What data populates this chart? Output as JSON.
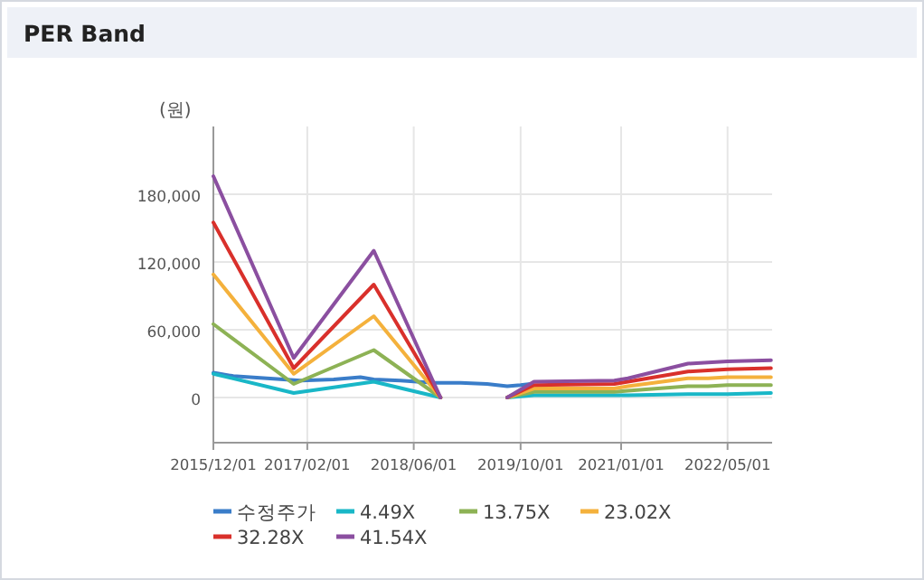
{
  "chart_data": {
    "type": "line",
    "title": "PER Band",
    "ylabel": "(원)",
    "x": [
      "2015-12-01",
      "2016-12-01",
      "2017-12-01",
      "2018-10-01",
      "2019-03-01",
      "2019-08-01",
      "2019-12-01",
      "2020-12-01",
      "2021-02-01",
      "2021-11-01",
      "2022-02-01",
      "2022-05-01",
      "2022-11-15"
    ],
    "series": [
      {
        "name": "수정주가",
        "color": "#3a7dc9",
        "x": [
          "2015-12-01",
          "2016-03-01",
          "2016-08-01",
          "2017-01-01",
          "2017-06-01",
          "2017-10-01",
          "2017-12-01",
          "2018-04-01",
          "2018-09-01",
          "2019-01-01",
          "2019-05-01",
          "2019-08-01",
          "2019-10-01",
          "2019-11-15"
        ],
        "values": [
          22000,
          19000,
          17000,
          15000,
          16000,
          18000,
          16000,
          15000,
          13000,
          13000,
          12000,
          10000,
          11000,
          12000
        ]
      },
      {
        "name": "4.49X",
        "color": "#19b7c7",
        "values": [
          21000,
          4000,
          14000,
          0,
          null,
          0,
          2000,
          2000,
          2000,
          3000,
          3000,
          3000,
          4000
        ]
      },
      {
        "name": "13.75X",
        "color": "#8db255",
        "values": [
          65000,
          12000,
          42000,
          0,
          null,
          0,
          5000,
          5000,
          6000,
          10000,
          10000,
          11000,
          11000
        ]
      },
      {
        "name": "23.02X",
        "color": "#f4b13c",
        "values": [
          109000,
          21000,
          72000,
          0,
          null,
          0,
          8000,
          8000,
          10000,
          17000,
          17000,
          18000,
          18000
        ]
      },
      {
        "name": "32.28X",
        "color": "#d9302b",
        "values": [
          155000,
          26000,
          100000,
          0,
          null,
          0,
          11000,
          12000,
          14000,
          23000,
          24000,
          25000,
          26000
        ]
      },
      {
        "name": "41.54X",
        "color": "#8b4fa0",
        "values": [
          196000,
          35000,
          130000,
          0,
          null,
          0,
          14000,
          15000,
          17000,
          30000,
          31000,
          32000,
          33000
        ]
      }
    ],
    "xlim": [
      "2015-12-01",
      "2022-11-20"
    ],
    "xticks": [
      {
        "value": "2015-12-01",
        "label": "2015/12/01"
      },
      {
        "value": "2017-02-01",
        "label": "2017/02/01"
      },
      {
        "value": "2018-06-01",
        "label": "2018/06/01"
      },
      {
        "value": "2019-10-01",
        "label": "2019/10/01"
      },
      {
        "value": "2021-01-01",
        "label": "2021/01/01"
      },
      {
        "value": "2022-05-01",
        "label": "2022/05/01"
      }
    ],
    "ylim": [
      -40000,
      240000
    ],
    "yticks": [
      0,
      {
        "value": 60000,
        "label": "60,000"
      },
      {
        "value": 120000,
        "label": "120,000"
      },
      {
        "value": 180000,
        "label": "180,000"
      }
    ],
    "grid": true,
    "legend": "bottom"
  }
}
